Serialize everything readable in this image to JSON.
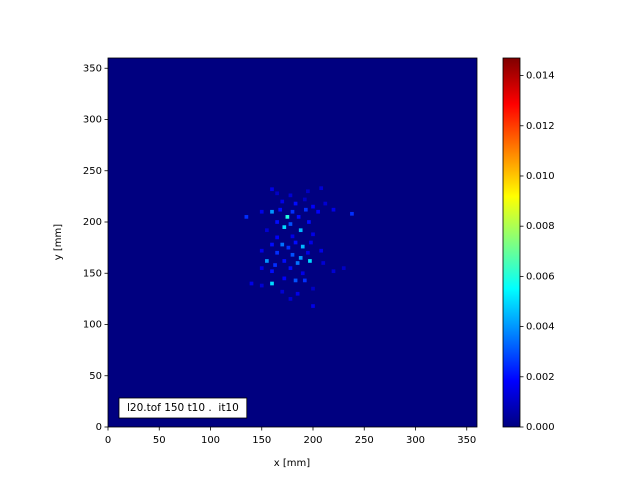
{
  "chart_data": {
    "type": "heatmap",
    "xlabel": "x [mm]",
    "ylabel": "y [mm]",
    "annotation": "l20.tof 150 t10 .  it10",
    "xlim": [
      0,
      360
    ],
    "ylim": [
      0,
      360
    ],
    "xticks": [
      0,
      50,
      100,
      150,
      200,
      250,
      300,
      350
    ],
    "yticks": [
      0,
      50,
      100,
      150,
      200,
      250,
      300,
      350
    ],
    "colormap": "jet",
    "clim": [
      0,
      0.0147
    ],
    "cticks": [
      {
        "value": 0,
        "label": "0.000"
      },
      {
        "value": 0.002,
        "label": "0.002"
      },
      {
        "value": 0.004,
        "label": "0.004"
      },
      {
        "value": 0.006,
        "label": "0.006"
      },
      {
        "value": 0.008,
        "label": "0.008"
      },
      {
        "value": 0.01,
        "label": "0.010"
      },
      {
        "value": 0.012,
        "label": "0.012"
      },
      {
        "value": 0.014,
        "label": "0.014"
      }
    ],
    "cells": {
      "x": [
        160,
        165,
        178,
        195,
        208,
        170,
        183,
        192,
        200,
        212,
        135,
        150,
        160,
        168,
        175,
        180,
        186,
        193,
        205,
        220,
        238,
        165,
        172,
        178,
        188,
        196,
        155,
        180,
        200,
        165,
        160,
        170,
        176,
        183,
        190,
        198,
        150,
        165,
        180,
        188,
        195,
        208,
        155,
        163,
        172,
        185,
        197,
        210,
        150,
        160,
        178,
        190,
        220,
        140,
        150,
        160,
        172,
        183,
        192,
        170,
        185,
        200,
        178,
        200,
        230
      ],
      "y": [
        232,
        228,
        226,
        230,
        233,
        220,
        218,
        222,
        215,
        218,
        205,
        210,
        210,
        212,
        205,
        210,
        205,
        212,
        210,
        212,
        208,
        200,
        195,
        198,
        192,
        200,
        192,
        186,
        188,
        185,
        178,
        178,
        175,
        180,
        176,
        180,
        172,
        170,
        168,
        165,
        170,
        172,
        162,
        158,
        162,
        160,
        162,
        160,
        155,
        152,
        155,
        150,
        152,
        140,
        138,
        140,
        145,
        143,
        143,
        132,
        130,
        135,
        125,
        118,
        155
      ],
      "values": [
        0.0015,
        0.001,
        0.0012,
        0.001,
        0.0012,
        0.0015,
        0.002,
        0.001,
        0.0018,
        0.0012,
        0.0025,
        0.0015,
        0.004,
        0.002,
        0.006,
        0.0025,
        0.002,
        0.0025,
        0.0018,
        0.0015,
        0.0025,
        0.002,
        0.005,
        0.003,
        0.0045,
        0.002,
        0.0012,
        0.0015,
        0.0015,
        0.0018,
        0.002,
        0.0035,
        0.0025,
        0.002,
        0.0045,
        0.0015,
        0.0015,
        0.0025,
        0.003,
        0.004,
        0.0015,
        0.0015,
        0.004,
        0.0025,
        0.002,
        0.0035,
        0.005,
        0.0012,
        0.0015,
        0.002,
        0.002,
        0.0015,
        0.0012,
        0.0015,
        0.0012,
        0.005,
        0.0018,
        0.003,
        0.0025,
        0.0012,
        0.0015,
        0.001,
        0.0012,
        0.0015,
        0.001
      ]
    }
  }
}
